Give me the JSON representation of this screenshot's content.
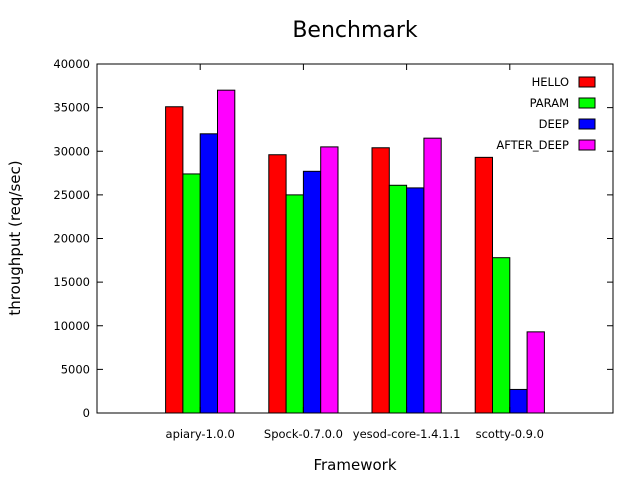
{
  "chart_data": {
    "type": "bar",
    "title": "Benchmark",
    "xlabel": "Framework",
    "ylabel": "throughput (req/sec)",
    "categories": [
      "apiary-1.0.0",
      "Spock-0.7.0.0",
      "yesod-core-1.4.1.1",
      "scotty-0.9.0"
    ],
    "series": [
      {
        "name": "HELLO",
        "color": "#ff0000",
        "values": [
          35100,
          29600,
          30400,
          29300
        ]
      },
      {
        "name": "PARAM",
        "color": "#00ff00",
        "values": [
          27400,
          25000,
          26100,
          17800
        ]
      },
      {
        "name": "DEEP",
        "color": "#0000ff",
        "values": [
          32000,
          27700,
          25800,
          2700
        ]
      },
      {
        "name": "AFTER_DEEP",
        "color": "#ff00ff",
        "values": [
          37000,
          30500,
          31500,
          9300
        ]
      }
    ],
    "ylim": [
      0,
      40000
    ],
    "yticks": [
      0,
      5000,
      10000,
      15000,
      20000,
      25000,
      30000,
      35000,
      40000
    ],
    "legend_position": "top-right",
    "grid": false
  }
}
